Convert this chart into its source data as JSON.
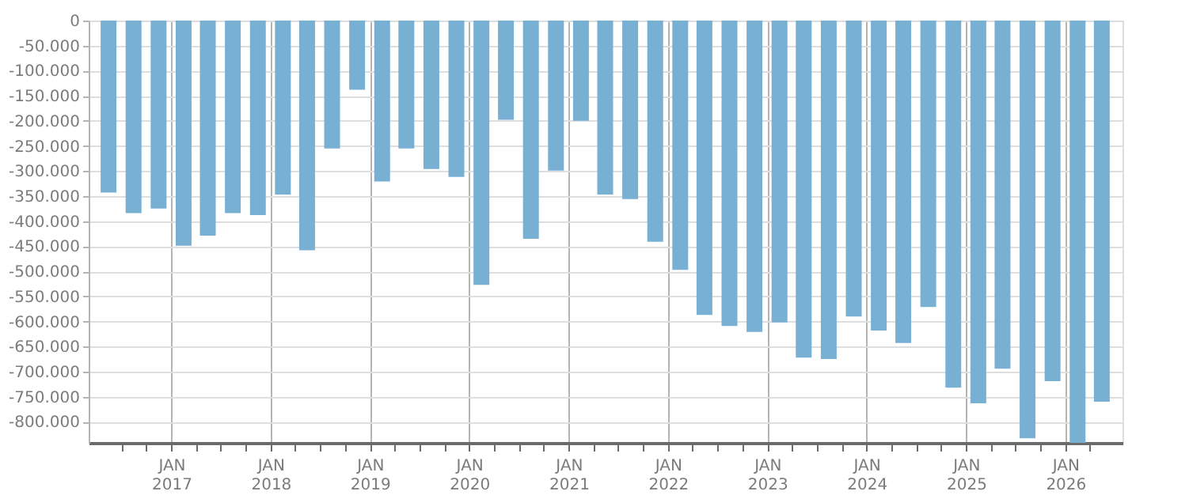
{
  "chart_data": {
    "type": "bar",
    "x": [
      "2016-05-15",
      "2016-08-15",
      "2016-11-15",
      "2017-02-15",
      "2017-05-15",
      "2017-08-15",
      "2017-11-15",
      "2018-02-15",
      "2018-05-15",
      "2018-08-15",
      "2018-11-15",
      "2019-02-15",
      "2019-05-15",
      "2019-08-15",
      "2019-11-15",
      "2020-02-15",
      "2020-05-15",
      "2020-08-15",
      "2020-11-15",
      "2021-02-15",
      "2021-05-15",
      "2021-08-15",
      "2021-11-15",
      "2022-02-15",
      "2022-05-15",
      "2022-08-15",
      "2022-11-15",
      "2023-02-15",
      "2023-05-15",
      "2023-08-15",
      "2023-11-15",
      "2024-02-15",
      "2024-05-15",
      "2024-08-15",
      "2024-11-15",
      "2025-02-15",
      "2025-05-15",
      "2025-08-15",
      "2025-11-15",
      "2026-02-15",
      "2026-05-15"
    ],
    "values": [
      -343000,
      -384000,
      -375000,
      -449000,
      -429000,
      -384000,
      -388000,
      -347000,
      -458000,
      -255000,
      -138000,
      -321000,
      -255000,
      -296000,
      -312000,
      -527000,
      -198000,
      -435000,
      -299000,
      -200000,
      -347000,
      -356000,
      -441000,
      -497000,
      -587000,
      -609000,
      -621000,
      -602000,
      -672000,
      -675000,
      -590000,
      -618000,
      -643000,
      -571000,
      -732000,
      -763000,
      -694000,
      -833000,
      -719000,
      -842000,
      -760000
    ],
    "color": "#78b0d4",
    "ylim": [
      -842000,
      0
    ],
    "yticks": [
      0,
      {
        "value": -50000,
        "label": "-50.000"
      },
      {
        "value": -100000,
        "label": "-100.000"
      },
      {
        "value": -150000,
        "label": "-150.000"
      },
      {
        "value": -200000,
        "label": "-200.000"
      },
      {
        "value": -250000,
        "label": "-250.000"
      },
      {
        "value": -300000,
        "label": "-300.000"
      },
      {
        "value": -350000,
        "label": "-350.000"
      },
      {
        "value": -400000,
        "label": "-400.000"
      },
      {
        "value": -450000,
        "label": "-450.000"
      },
      {
        "value": -500000,
        "label": "-500.000"
      },
      {
        "value": -550000,
        "label": "-550.000"
      },
      {
        "value": -600000,
        "label": "-600.000"
      },
      {
        "value": -650000,
        "label": "-650.000"
      },
      {
        "value": -700000,
        "label": "-700.000"
      },
      {
        "value": -750000,
        "label": "-750.000"
      },
      {
        "value": -800000,
        "label": "-800.000"
      }
    ],
    "xlim": [
      "2016-04-01",
      "2026-07-01"
    ],
    "xticks": [
      {
        "value": "2016-07",
        "label": null
      },
      {
        "value": "2016-10",
        "label": null
      },
      {
        "value": "2017-01",
        "label": "JAN\n2017"
      },
      {
        "value": "2017-04",
        "label": null
      },
      {
        "value": "2017-07",
        "label": null
      },
      {
        "value": "2017-10",
        "label": null
      },
      {
        "value": "2018-01",
        "label": "JAN\n2018"
      },
      {
        "value": "2018-04",
        "label": null
      },
      {
        "value": "2018-07",
        "label": null
      },
      {
        "value": "2018-10",
        "label": null
      },
      {
        "value": "2019-01",
        "label": "JAN\n2019"
      },
      {
        "value": "2019-04",
        "label": null
      },
      {
        "value": "2019-07",
        "label": null
      },
      {
        "value": "2019-10",
        "label": null
      },
      {
        "value": "2020-01",
        "label": "JAN\n2020"
      },
      {
        "value": "2020-04",
        "label": null
      },
      {
        "value": "2020-07",
        "label": null
      },
      {
        "value": "2020-10",
        "label": null
      },
      {
        "value": "2021-01",
        "label": "JAN\n2021"
      },
      {
        "value": "2021-04",
        "label": null
      },
      {
        "value": "2021-07",
        "label": null
      },
      {
        "value": "2021-10",
        "label": null
      },
      {
        "value": "2022-01",
        "label": "JAN\n2022"
      },
      {
        "value": "2022-04",
        "label": null
      },
      {
        "value": "2022-07",
        "label": null
      },
      {
        "value": "2022-10",
        "label": null
      },
      {
        "value": "2023-01",
        "label": "JAN\n2023"
      },
      {
        "value": "2023-04",
        "label": null
      },
      {
        "value": "2023-07",
        "label": null
      },
      {
        "value": "2023-10",
        "label": null
      },
      {
        "value": "2024-01",
        "label": "JAN\n2024"
      },
      {
        "value": "2024-04",
        "label": null
      },
      {
        "value": "2024-07",
        "label": null
      },
      {
        "value": "2024-10",
        "label": null
      },
      {
        "value": "2025-01",
        "label": "JAN\n2025"
      },
      {
        "value": "2025-04",
        "label": null
      },
      {
        "value": "2025-07",
        "label": null
      },
      {
        "value": "2025-10",
        "label": null
      },
      {
        "value": "2026-01",
        "label": "JAN\n2026"
      },
      {
        "value": "2026-04",
        "label": null
      }
    ],
    "grid": true
  }
}
